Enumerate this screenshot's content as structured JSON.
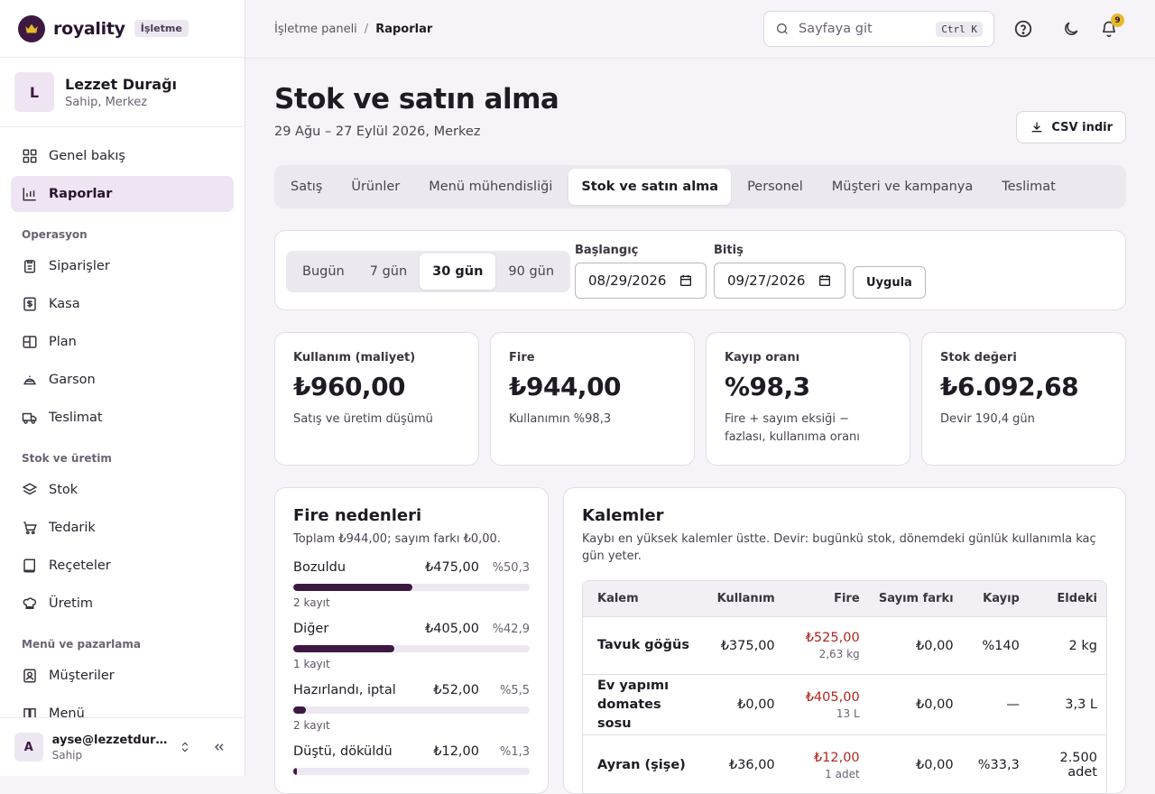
{
  "brand": {
    "name": "royality",
    "badge": "İşletme"
  },
  "profile": {
    "initial": "L",
    "name": "Lezzet Durağı",
    "role": "Sahip, Merkez"
  },
  "nav": {
    "top": [
      {
        "label": "Genel bakış",
        "icon": "dashboard-icon",
        "active": false
      },
      {
        "label": "Raporlar",
        "icon": "chart-bar-icon",
        "active": true
      }
    ],
    "sections": [
      {
        "title": "Operasyon",
        "items": [
          "Siparişler",
          "Kasa",
          "Plan",
          "Garson",
          "Teslimat"
        ]
      },
      {
        "title": "Stok ve üretim",
        "items": [
          "Stok",
          "Tedarik",
          "Reçeteler",
          "Üretim"
        ]
      },
      {
        "title": "Menü ve pazarlama",
        "items": [
          "Müşteriler",
          "Menü"
        ]
      }
    ]
  },
  "user": {
    "initial": "A",
    "email": "ayse@lezzetdura...",
    "role": "Sahip"
  },
  "breadcrumb": {
    "parent": "İşletme paneli",
    "separator": "/",
    "current": "Raporlar"
  },
  "search": {
    "placeholder": "Sayfaya git",
    "shortcut": "Ctrl K"
  },
  "notifications": {
    "count": "9"
  },
  "page": {
    "title": "Stok ve satın alma",
    "subtitle": "29 Ağu – 27 Eylül 2026, Merkez",
    "csv_label": "CSV indir"
  },
  "tabs": [
    {
      "label": "Satış",
      "active": false
    },
    {
      "label": "Ürünler",
      "active": false
    },
    {
      "label": "Menü mühendisliği",
      "active": false
    },
    {
      "label": "Stok ve satın alma",
      "active": true
    },
    {
      "label": "Personel",
      "active": false
    },
    {
      "label": "Müşteri ve kampanya",
      "active": false
    },
    {
      "label": "Teslimat",
      "active": false
    }
  ],
  "filters": {
    "ranges": [
      {
        "label": "Bugün",
        "active": false
      },
      {
        "label": "7 gün",
        "active": false
      },
      {
        "label": "30 gün",
        "active": true
      },
      {
        "label": "90 gün",
        "active": false
      }
    ],
    "start_label": "Başlangıç",
    "start_value": "08/29/2026",
    "end_label": "Bitiş",
    "end_value": "09/27/2026",
    "apply_label": "Uygula"
  },
  "kpis": [
    {
      "label": "Kullanım (maliyet)",
      "value": "₺960,00",
      "sub": "Satış ve üretim düşümü"
    },
    {
      "label": "Fire",
      "value": "₺944,00",
      "sub": "Kullanımın %98,3"
    },
    {
      "label": "Kayıp oranı",
      "value": "%98,3",
      "sub": "Fire + sayım eksiği − fazlası, kullanıma oranı"
    },
    {
      "label": "Stok değeri",
      "value": "₺6.092,68",
      "sub": "Devir 190,4 gün"
    }
  ],
  "reasons": {
    "title": "Fire nedenleri",
    "subtitle": "Toplam ₺944,00; sayım farkı ₺0,00.",
    "items": [
      {
        "name": "Bozuldu",
        "amount": "₺475,00",
        "pct": "%50,3",
        "share": 50.3,
        "count": "2 kayıt"
      },
      {
        "name": "Diğer",
        "amount": "₺405,00",
        "pct": "%42,9",
        "share": 42.9,
        "count": "1 kayıt"
      },
      {
        "name": "Hazırlandı, iptal",
        "amount": "₺52,00",
        "pct": "%5,5",
        "share": 5.5,
        "count": "2 kayıt"
      },
      {
        "name": "Düştü, döküldü",
        "amount": "₺12,00",
        "pct": "%1,3",
        "share": 1.3,
        "count": ""
      }
    ]
  },
  "items": {
    "title": "Kalemler",
    "subtitle": "Kaybı en yüksek kalemler üstte. Devir: bugünkü stok, dönemdeki günlük kullanımla kaç gün yeter.",
    "columns": [
      "Kalem",
      "Kullanım",
      "Fire",
      "Sayım farkı",
      "Kayıp",
      "Eldeki"
    ],
    "rows": [
      {
        "name": "Tavuk göğüs",
        "usage": "₺375,00",
        "waste": "₺525,00",
        "waste_qty": "2,63 kg",
        "count_diff": "₺0,00",
        "loss": "%140",
        "on_hand": "2 kg"
      },
      {
        "name": "Ev yapımı domates sosu",
        "usage": "₺0,00",
        "waste": "₺405,00",
        "waste_qty": "13 L",
        "count_diff": "₺0,00",
        "loss": "—",
        "on_hand": "3,3 L"
      },
      {
        "name": "Ayran (şişe)",
        "usage": "₺36,00",
        "waste": "₺12,00",
        "waste_qty": "1 adet",
        "count_diff": "₺0,00",
        "loss": "%33,3",
        "on_hand": "2.500 adet"
      }
    ]
  }
}
